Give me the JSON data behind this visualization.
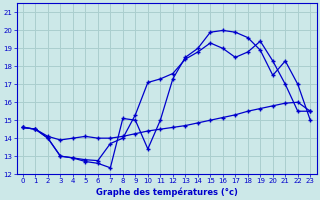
{
  "xlabel": "Graphe des températures (°c)",
  "bg_color": "#cce8e8",
  "grid_color": "#aacece",
  "line_color": "#0000cc",
  "xlim": [
    -0.5,
    23.5
  ],
  "ylim": [
    12,
    21.5
  ],
  "xticks": [
    0,
    1,
    2,
    3,
    4,
    5,
    6,
    7,
    8,
    9,
    10,
    11,
    12,
    13,
    14,
    15,
    16,
    17,
    18,
    19,
    20,
    21,
    22,
    23
  ],
  "yticks": [
    12,
    13,
    14,
    15,
    16,
    17,
    18,
    19,
    20,
    21
  ],
  "line1_x": [
    0,
    1,
    2,
    3,
    4,
    5,
    6,
    7,
    8,
    9,
    10,
    11,
    12,
    13,
    14,
    15,
    16,
    17,
    18,
    19,
    20,
    21,
    22,
    23
  ],
  "line1_y": [
    14.6,
    14.5,
    14.1,
    13.9,
    14.0,
    14.1,
    14.0,
    14.0,
    14.1,
    14.25,
    14.4,
    14.5,
    14.6,
    14.7,
    14.85,
    15.0,
    15.15,
    15.3,
    15.5,
    15.65,
    15.8,
    15.95,
    16.0,
    15.5
  ],
  "line2_x": [
    0,
    1,
    2,
    3,
    4,
    5,
    6,
    7,
    8,
    9,
    10,
    11,
    12,
    13,
    14,
    15,
    16,
    17,
    18,
    19,
    20,
    21,
    22,
    23
  ],
  "line2_y": [
    14.6,
    14.5,
    14.0,
    13.0,
    12.9,
    12.8,
    12.75,
    13.7,
    14.0,
    15.3,
    17.1,
    17.3,
    17.6,
    18.4,
    18.8,
    19.3,
    19.0,
    18.5,
    18.8,
    19.4,
    18.3,
    17.0,
    15.5,
    15.5
  ],
  "line3_x": [
    0,
    1,
    2,
    3,
    4,
    5,
    6,
    7,
    8,
    9,
    10,
    11,
    12,
    13,
    14,
    15,
    16,
    17,
    18,
    19,
    20,
    21,
    22,
    23
  ],
  "line3_y": [
    14.6,
    14.5,
    14.0,
    13.0,
    12.9,
    12.7,
    12.6,
    12.35,
    15.1,
    15.0,
    13.4,
    15.0,
    17.3,
    18.5,
    19.0,
    19.9,
    20.0,
    19.9,
    19.6,
    18.9,
    17.5,
    18.3,
    17.0,
    15.0
  ]
}
